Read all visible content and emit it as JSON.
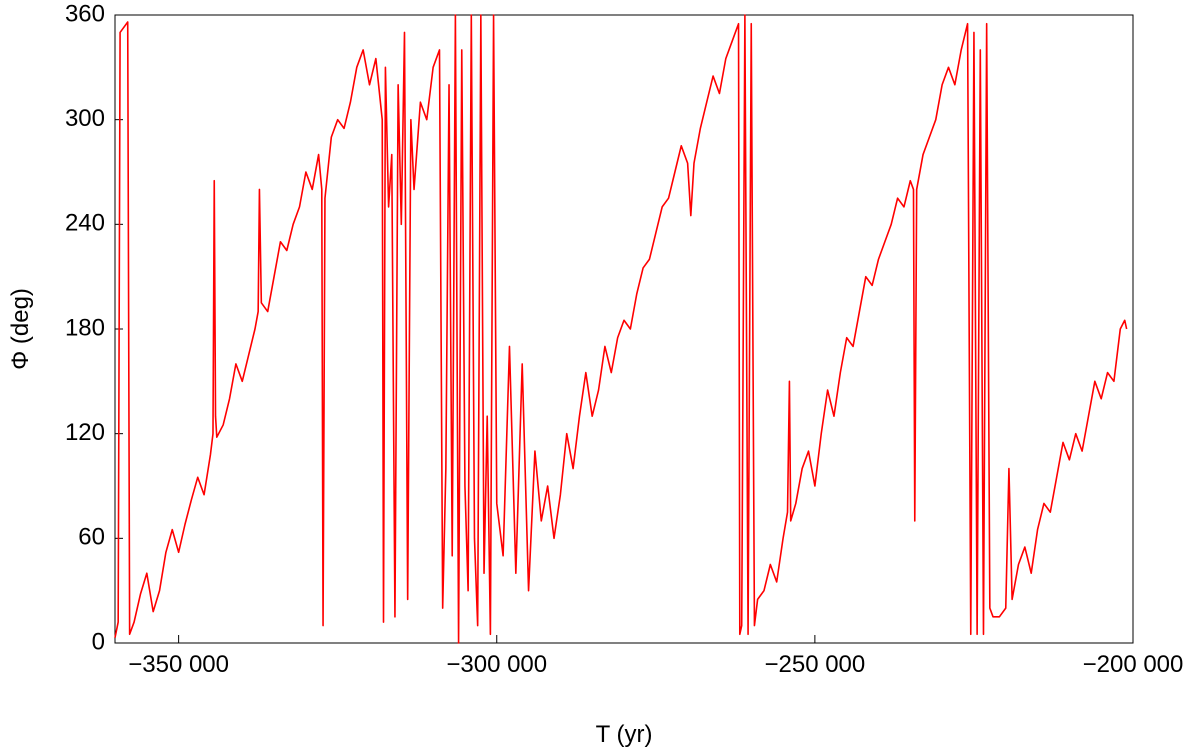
{
  "chart_data": {
    "type": "line",
    "xlabel": "T (yr)",
    "ylabel": "Φ (deg)",
    "color": "#ff0000",
    "xlim": [
      -360000,
      -200000
    ],
    "xticks": [
      {
        "value": -350000,
        "label": "−350 000"
      },
      {
        "value": -300000,
        "label": "−300 000"
      },
      {
        "value": -250000,
        "label": "−250 000"
      },
      {
        "value": -200000,
        "label": "−200 000"
      }
    ],
    "ylim": [
      0,
      360
    ],
    "yticks": [
      0,
      60,
      120,
      180,
      240,
      300,
      360
    ],
    "x": [
      -360000,
      -359500,
      -359200,
      -358000,
      -357700,
      -357000,
      -356000,
      -355000,
      -354000,
      -353000,
      -352000,
      -351000,
      -350000,
      -349000,
      -348000,
      -347000,
      -346000,
      -345000,
      -344600,
      -344400,
      -344200,
      -344000,
      -343000,
      -342000,
      -341000,
      -340000,
      -339000,
      -338000,
      -337500,
      -337300,
      -337000,
      -336000,
      -335000,
      -334000,
      -333000,
      -332000,
      -331000,
      -330000,
      -329000,
      -328000,
      -327500,
      -327300,
      -327000,
      -326000,
      -325000,
      -324000,
      -323000,
      -322000,
      -321000,
      -320000,
      -319000,
      -318000,
      -317800,
      -317500,
      -317000,
      -316500,
      -316000,
      -315500,
      -315000,
      -314500,
      -314000,
      -313500,
      -313000,
      -312000,
      -311000,
      -310000,
      -309000,
      -308500,
      -308000,
      -307500,
      -307000,
      -306500,
      -306000,
      -305500,
      -305000,
      -304500,
      -304000,
      -303500,
      -303000,
      -302500,
      -302000,
      -301500,
      -301000,
      -300500,
      -300000,
      -299000,
      -298000,
      -297000,
      -296000,
      -295000,
      -294000,
      -293000,
      -292000,
      -291000,
      -290000,
      -289000,
      -288000,
      -287000,
      -286000,
      -285000,
      -284000,
      -283000,
      -282000,
      -281000,
      -280000,
      -279000,
      -278000,
      -277000,
      -276000,
      -275000,
      -274000,
      -273000,
      -272000,
      -271000,
      -270000,
      -269500,
      -269000,
      -268000,
      -267000,
      -266000,
      -265000,
      -264000,
      -263000,
      -262000,
      -261800,
      -261500,
      -261000,
      -260500,
      -260000,
      -259500,
      -259000,
      -258000,
      -257000,
      -256000,
      -255000,
      -254300,
      -254000,
      -253800,
      -253000,
      -252000,
      -251000,
      -250000,
      -249000,
      -248000,
      -247000,
      -246000,
      -245000,
      -244000,
      -243000,
      -242000,
      -241000,
      -240000,
      -239000,
      -238000,
      -237000,
      -236000,
      -235000,
      -234500,
      -234300,
      -234000,
      -233000,
      -232000,
      -231000,
      -230000,
      -229000,
      -228000,
      -227000,
      -226000,
      -225500,
      -225000,
      -224500,
      -224000,
      -223500,
      -223000,
      -222500,
      -222000,
      -221000,
      -220000,
      -219500,
      -219000,
      -218000,
      -217000,
      -216000,
      -215000,
      -214000,
      -213000,
      -212000,
      -211000,
      -210000,
      -209000,
      -208000,
      -207000,
      -206000,
      -205000,
      -204000,
      -203000,
      -202000,
      -201300,
      -201000
    ],
    "values": [
      3,
      12,
      350,
      356,
      5,
      12,
      28,
      40,
      18,
      30,
      52,
      65,
      52,
      68,
      82,
      95,
      85,
      108,
      120,
      265,
      130,
      118,
      125,
      140,
      160,
      150,
      165,
      180,
      190,
      260,
      195,
      190,
      210,
      230,
      225,
      240,
      250,
      270,
      260,
      280,
      260,
      10,
      255,
      290,
      300,
      295,
      310,
      330,
      340,
      320,
      335,
      300,
      12,
      330,
      250,
      280,
      15,
      320,
      240,
      350,
      25,
      300,
      260,
      310,
      300,
      330,
      340,
      20,
      100,
      320,
      50,
      360,
      0,
      340,
      90,
      30,
      360,
      60,
      10,
      360,
      40,
      130,
      5,
      360,
      80,
      50,
      170,
      40,
      160,
      30,
      110,
      70,
      90,
      60,
      85,
      120,
      100,
      130,
      155,
      130,
      145,
      170,
      155,
      175,
      185,
      180,
      200,
      215,
      220,
      235,
      250,
      255,
      270,
      285,
      275,
      245,
      275,
      295,
      310,
      325,
      315,
      335,
      345,
      355,
      5,
      10,
      360,
      5,
      355,
      10,
      25,
      30,
      45,
      35,
      60,
      75,
      150,
      70,
      80,
      100,
      110,
      90,
      120,
      145,
      130,
      155,
      175,
      170,
      190,
      210,
      205,
      220,
      230,
      240,
      255,
      250,
      265,
      260,
      70,
      260,
      280,
      290,
      300,
      320,
      330,
      320,
      340,
      355,
      5,
      350,
      5,
      340,
      5,
      355,
      20,
      15,
      15,
      20,
      100,
      25,
      45,
      55,
      40,
      65,
      80,
      75,
      95,
      115,
      105,
      120,
      110,
      130,
      150,
      140,
      155,
      150,
      180,
      185,
      180
    ]
  }
}
